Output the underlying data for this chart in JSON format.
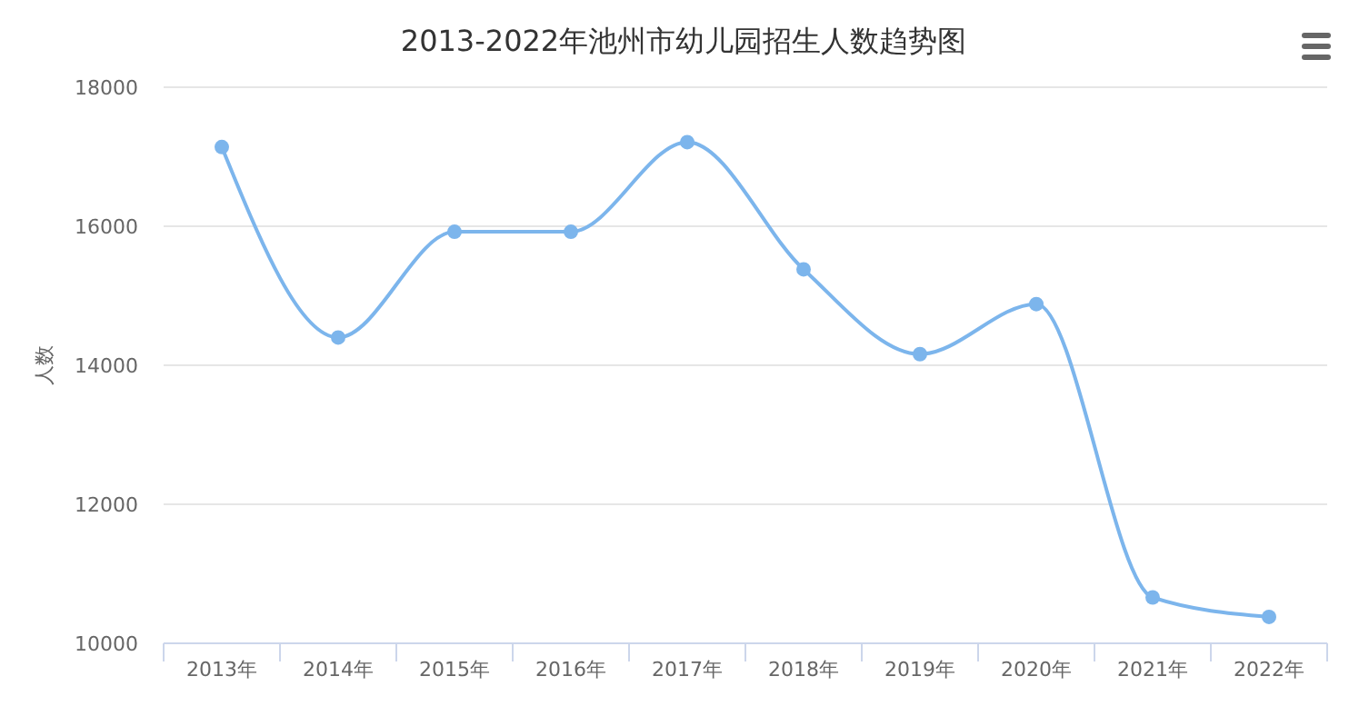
{
  "chart_data": {
    "type": "line",
    "title": "2013-2022年池州市幼儿园招生人数趋势图",
    "ylabel": "人数",
    "categories": [
      "2013年",
      "2014年",
      "2015年",
      "2016年",
      "2017年",
      "2018年",
      "2019年",
      "2020年",
      "2021年",
      "2022年"
    ],
    "series": [
      {
        "color": "#7cb5ec",
        "values": [
          17140,
          14400,
          15920,
          15920,
          17210,
          15380,
          14160,
          14880,
          10660,
          10380
        ]
      }
    ],
    "ylim": [
      10000,
      18000
    ],
    "yticks": [
      10000,
      12000,
      14000,
      16000,
      18000
    ],
    "grid": "y",
    "marker": "circle"
  }
}
